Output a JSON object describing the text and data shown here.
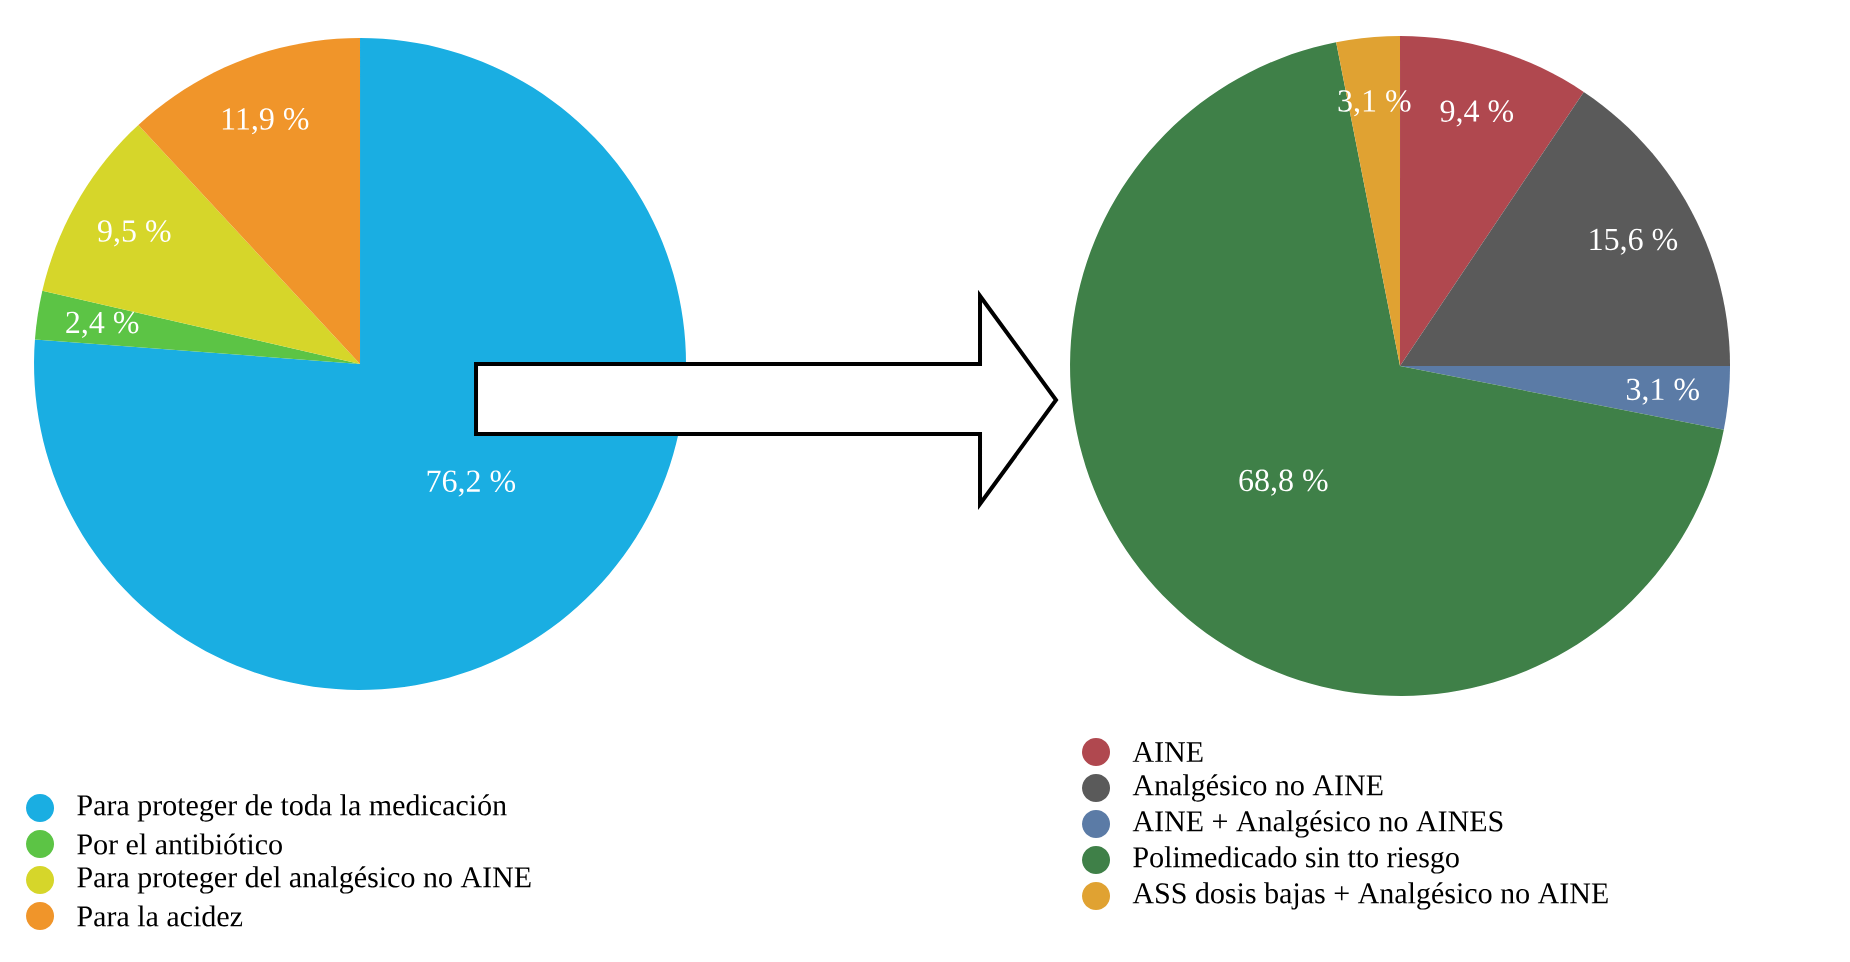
{
  "chart_data": [
    {
      "type": "pie",
      "categories": [
        "Para proteger de toda la medicación",
        "Por el antibiótico",
        "Para proteger del analgésico no AINE",
        "Para la acidez"
      ],
      "values": [
        76.2,
        2.4,
        9.5,
        11.9
      ],
      "colors": [
        "#1aaee2",
        "#5cc445",
        "#d6d62a",
        "#f0952a"
      ],
      "value_labels": [
        "76,2 %",
        "2,4 %",
        "9,5 %",
        "11,9 %"
      ],
      "legend": "bottom left"
    },
    {
      "type": "pie",
      "categories": [
        "AINE",
        "Analgésico no AINE",
        "AINE + Analgésico no AINES",
        "Polimedicado sin tto riesgo",
        "ASS dosis bajas + Analgésico no AINE"
      ],
      "values": [
        9.4,
        15.6,
        3.1,
        68.8,
        3.1
      ],
      "colors": [
        "#b0484f",
        "#5a5a5a",
        "#5b7ba6",
        "#3f8048",
        "#e0a232"
      ],
      "value_labels": [
        "9,4 %",
        "15,6 %",
        "3,1 %",
        "68,8 %",
        "3,1 %"
      ],
      "legend": "bottom left"
    }
  ]
}
